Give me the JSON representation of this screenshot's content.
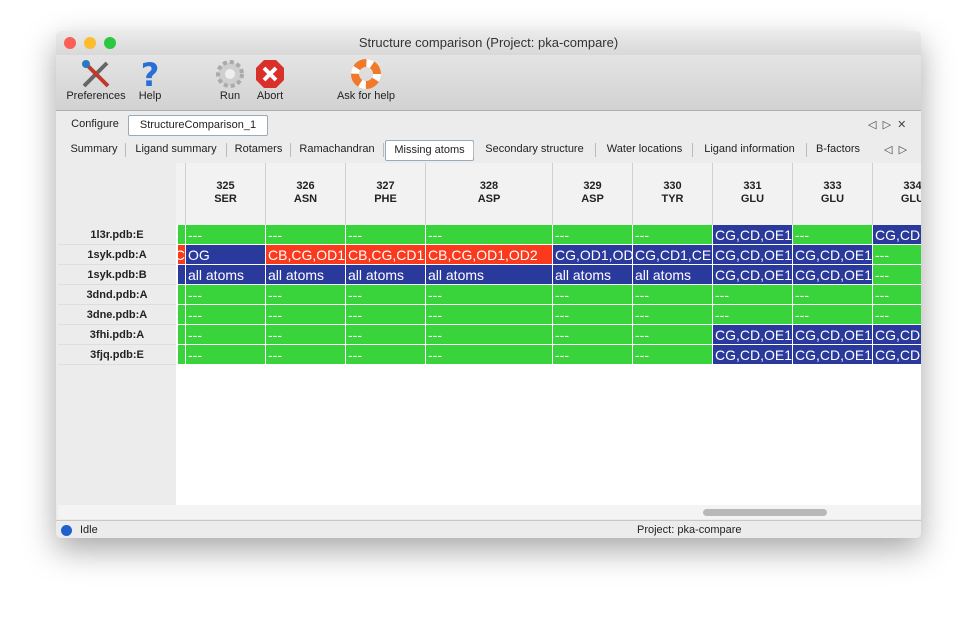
{
  "window": {
    "title": "Structure comparison (Project: pka-compare)"
  },
  "toolbar": [
    {
      "label": "Preferences"
    },
    {
      "label": "Help"
    },
    {
      "label": "Run"
    },
    {
      "label": "Abort"
    },
    {
      "label": "Ask for help"
    }
  ],
  "tabs": [
    {
      "label": "Configure"
    },
    {
      "label": "StructureComparison_1",
      "selected": true
    }
  ],
  "subtabs": [
    {
      "label": "Summary"
    },
    {
      "label": "Ligand summary"
    },
    {
      "label": "Rotamers"
    },
    {
      "label": "Ramachandran"
    },
    {
      "label": "Missing atoms",
      "selected": true
    },
    {
      "label": "Secondary structure"
    },
    {
      "label": "Water locations"
    },
    {
      "label": "Ligand information"
    },
    {
      "label": "B-factors"
    }
  ],
  "table": {
    "columns": [
      {
        "number": "325",
        "residue": "SER"
      },
      {
        "number": "326",
        "residue": "ASN"
      },
      {
        "number": "327",
        "residue": "PHE"
      },
      {
        "number": "328",
        "residue": "ASP"
      },
      {
        "number": "329",
        "residue": "ASP"
      },
      {
        "number": "330",
        "residue": "TYR"
      },
      {
        "number": "331",
        "residue": "GLU"
      },
      {
        "number": "333",
        "residue": "GLU"
      },
      {
        "number": "334",
        "residue": "GLU"
      }
    ],
    "colors": {
      "none": "#39d33c",
      "partial": "#fb3a1d",
      "missing": "#2a3a9c"
    },
    "rows": [
      {
        "label": "1l3r.pdb:E",
        "lead": {
          "state": "none"
        },
        "cells": [
          {
            "text": "---",
            "state": "none"
          },
          {
            "text": "---",
            "state": "none"
          },
          {
            "text": "---",
            "state": "none"
          },
          {
            "text": "---",
            "state": "none"
          },
          {
            "text": "---",
            "state": "none"
          },
          {
            "text": "---",
            "state": "none"
          },
          {
            "text": "CG,CD,OE1",
            "state": "missing"
          },
          {
            "text": "---",
            "state": "none"
          },
          {
            "text": "CG,CD",
            "state": "missing"
          }
        ]
      },
      {
        "label": "1syk.pdb:A",
        "lead": {
          "state": "partial",
          "text": "C"
        },
        "cells": [
          {
            "text": "OG",
            "state": "missing"
          },
          {
            "text": "CB,CG,OD1",
            "state": "partial"
          },
          {
            "text": "CB,CG,CD1",
            "state": "partial"
          },
          {
            "text": "CB,CG,OD1,OD2",
            "state": "partial"
          },
          {
            "text": "CG,OD1,OD",
            "state": "missing"
          },
          {
            "text": "CG,CD1,CE",
            "state": "missing"
          },
          {
            "text": "CG,CD,OE1",
            "state": "missing"
          },
          {
            "text": "CG,CD,OE1",
            "state": "missing"
          },
          {
            "text": "---",
            "state": "none"
          }
        ]
      },
      {
        "label": "1syk.pdb:B",
        "lead": {
          "state": "missing"
        },
        "cells": [
          {
            "text": "all atoms",
            "state": "missing"
          },
          {
            "text": "all atoms",
            "state": "missing"
          },
          {
            "text": "all atoms",
            "state": "missing"
          },
          {
            "text": "all atoms",
            "state": "missing"
          },
          {
            "text": "all atoms",
            "state": "missing"
          },
          {
            "text": "all atoms",
            "state": "missing"
          },
          {
            "text": "CG,CD,OE1",
            "state": "missing"
          },
          {
            "text": "CG,CD,OE1",
            "state": "missing"
          },
          {
            "text": "---",
            "state": "none"
          }
        ]
      },
      {
        "label": "3dnd.pdb:A",
        "lead": {
          "state": "none"
        },
        "cells": [
          {
            "text": "---",
            "state": "none"
          },
          {
            "text": "---",
            "state": "none"
          },
          {
            "text": "---",
            "state": "none"
          },
          {
            "text": "---",
            "state": "none"
          },
          {
            "text": "---",
            "state": "none"
          },
          {
            "text": "---",
            "state": "none"
          },
          {
            "text": "---",
            "state": "none"
          },
          {
            "text": "---",
            "state": "none"
          },
          {
            "text": "---",
            "state": "none"
          }
        ]
      },
      {
        "label": "3dne.pdb:A",
        "lead": {
          "state": "none"
        },
        "cells": [
          {
            "text": "---",
            "state": "none"
          },
          {
            "text": "---",
            "state": "none"
          },
          {
            "text": "---",
            "state": "none"
          },
          {
            "text": "---",
            "state": "none"
          },
          {
            "text": "---",
            "state": "none"
          },
          {
            "text": "---",
            "state": "none"
          },
          {
            "text": "---",
            "state": "none"
          },
          {
            "text": "---",
            "state": "none"
          },
          {
            "text": "---",
            "state": "none"
          }
        ]
      },
      {
        "label": "3fhi.pdb:A",
        "lead": {
          "state": "none"
        },
        "cells": [
          {
            "text": "---",
            "state": "none"
          },
          {
            "text": "---",
            "state": "none"
          },
          {
            "text": "---",
            "state": "none"
          },
          {
            "text": "---",
            "state": "none"
          },
          {
            "text": "---",
            "state": "none"
          },
          {
            "text": "---",
            "state": "none"
          },
          {
            "text": "CG,CD,OE1",
            "state": "missing"
          },
          {
            "text": "CG,CD,OE1",
            "state": "missing"
          },
          {
            "text": "CG,CD",
            "state": "missing"
          }
        ]
      },
      {
        "label": "3fjq.pdb:E",
        "lead": {
          "state": "none"
        },
        "cells": [
          {
            "text": "---",
            "state": "none"
          },
          {
            "text": "---",
            "state": "none"
          },
          {
            "text": "---",
            "state": "none"
          },
          {
            "text": "---",
            "state": "none"
          },
          {
            "text": "---",
            "state": "none"
          },
          {
            "text": "---",
            "state": "none"
          },
          {
            "text": "CG,CD,OE1",
            "state": "missing"
          },
          {
            "text": "CG,CD,OE1",
            "state": "missing"
          },
          {
            "text": "CG,CD",
            "state": "missing"
          }
        ]
      }
    ]
  },
  "status": {
    "state": "Idle",
    "project": "Project: pka-compare"
  }
}
